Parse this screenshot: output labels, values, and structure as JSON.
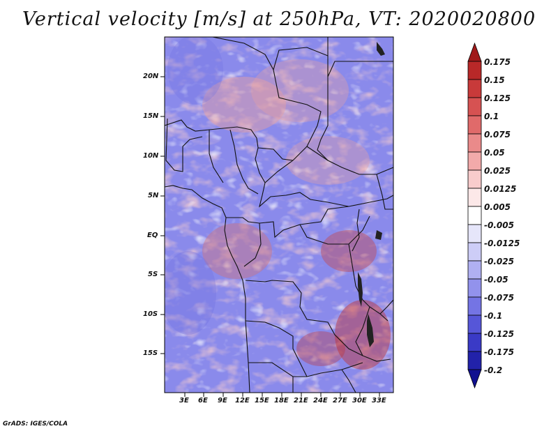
{
  "title": "Vertical velocity [m/s] at 250hPa, VT: 2020020800",
  "footer": "GrADS: IGES/COLA",
  "map": {
    "lat_labels": [
      "20N",
      "15N",
      "10N",
      "5N",
      "EQ",
      "5S",
      "10S",
      "15S"
    ],
    "lon_labels": [
      "3E",
      "6E",
      "9E",
      "12E",
      "15E",
      "18E",
      "21E",
      "24E",
      "27E",
      "30E",
      "33E"
    ]
  },
  "colorbar": {
    "levels": [
      "0.175",
      "0.15",
      "0.125",
      "0.1",
      "0.075",
      "0.05",
      "0.025",
      "0.0125",
      "0.005",
      "-0.005",
      "-0.0125",
      "-0.025",
      "-0.05",
      "-0.075",
      "-0.1",
      "-0.125",
      "-0.175",
      "-0.2"
    ],
    "colors": [
      "#a01a1a",
      "#b82828",
      "#c83a3a",
      "#d65252",
      "#e06a6a",
      "#ea8a8a",
      "#f2aaaa",
      "#f8cccc",
      "#fce8e8",
      "#ffffff",
      "#e6e6fa",
      "#cdcdf7",
      "#b0b0f2",
      "#9292ec",
      "#7474e4",
      "#5656d8",
      "#3a3ac6",
      "#2222aa",
      "#101090"
    ]
  }
}
